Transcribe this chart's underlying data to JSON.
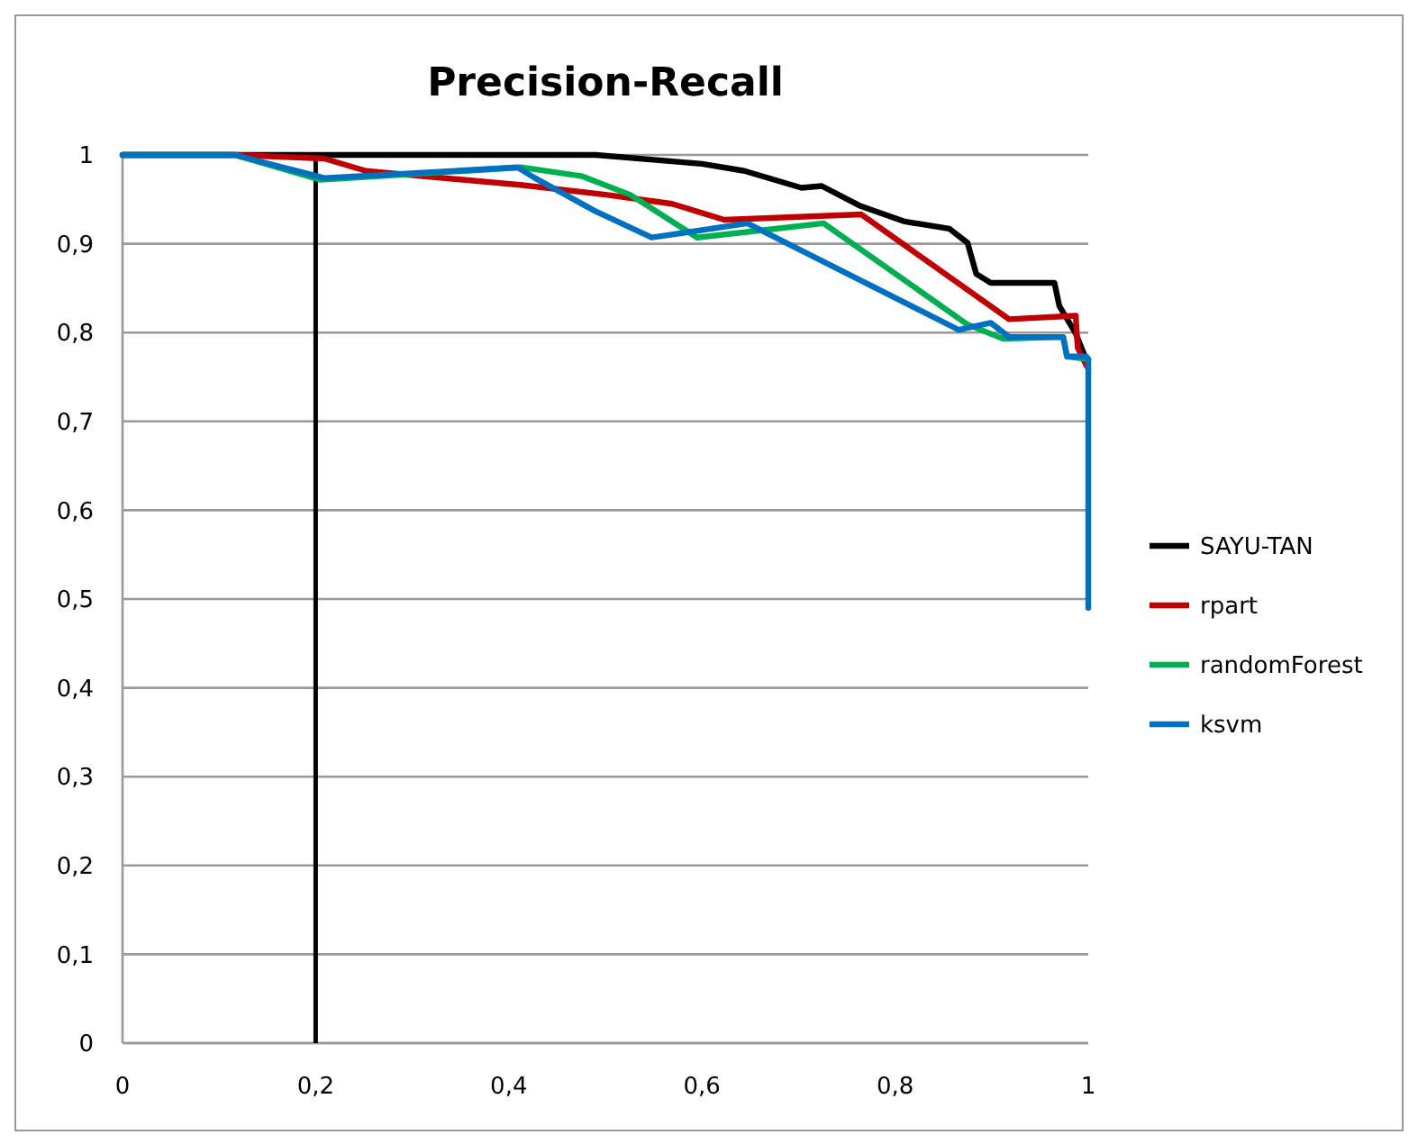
{
  "chart_data": {
    "type": "line",
    "title": "Precision-Recall",
    "xlim": [
      0,
      1
    ],
    "xticks": [
      0,
      {
        "value": 0.2,
        "label": "0,2"
      },
      {
        "value": 0.4,
        "label": "0,4"
      },
      {
        "value": 0.6,
        "label": "0,6"
      },
      {
        "value": 0.8,
        "label": "0,8"
      },
      1
    ],
    "ylim": [
      0,
      1
    ],
    "yticks": [
      0,
      {
        "value": 0.1,
        "label": "0,1"
      },
      {
        "value": 0.2,
        "label": "0,2"
      },
      {
        "value": 0.3,
        "label": "0,3"
      },
      {
        "value": 0.4,
        "label": "0,4"
      },
      {
        "value": 0.5,
        "label": "0,5"
      },
      {
        "value": 0.6,
        "label": "0,6"
      },
      {
        "value": 0.7,
        "label": "0,7"
      },
      {
        "value": 0.8,
        "label": "0,8"
      },
      {
        "value": 0.9,
        "label": "0,9"
      },
      1
    ],
    "grid": "y",
    "legend": "right",
    "marker": "none",
    "line_style": "solid",
    "ref_lines": [
      {
        "axis": "x",
        "value": 0.2,
        "color": "#000000"
      }
    ],
    "series": [
      {
        "name": "SAYU-TAN",
        "color": "#000000",
        "x": [
          0,
          0.2,
          0.49,
          0.6,
          0.644,
          0.703,
          0.724,
          0.763,
          0.81,
          0.856,
          0.875,
          0.884,
          0.899,
          0.965,
          0.97,
          0.987,
          0.998,
          1
        ],
        "values": [
          1,
          1,
          1,
          0.99,
          0.982,
          0.963,
          0.965,
          0.943,
          0.925,
          0.917,
          0.901,
          0.866,
          0.856,
          0.856,
          0.83,
          0.799,
          0.769,
          0.77
        ]
      },
      {
        "name": "rpart",
        "color": "#c00000",
        "x": [
          0,
          0.116,
          0.209,
          0.252,
          0.414,
          0.502,
          0.569,
          0.623,
          0.765,
          0.918,
          0.987,
          0.989,
          0.998,
          1
        ],
        "values": [
          1,
          1,
          0.996,
          0.982,
          0.966,
          0.955,
          0.945,
          0.927,
          0.933,
          0.815,
          0.819,
          0.783,
          0.763,
          0.76
        ]
      },
      {
        "name": "randomForest",
        "color": "#00b050",
        "x": [
          0,
          0.116,
          0.205,
          0.414,
          0.476,
          0.526,
          0.595,
          0.726,
          0.875,
          0.912,
          0.974,
          0.978,
          1
        ],
        "values": [
          1,
          1,
          0.972,
          0.986,
          0.976,
          0.955,
          0.907,
          0.923,
          0.809,
          0.793,
          0.795,
          0.773,
          0.77
        ]
      },
      {
        "name": "ksvm",
        "color": "#0070c0",
        "x": [
          0,
          0.116,
          0.209,
          0.409,
          0.427,
          0.489,
          0.548,
          0.647,
          0.866,
          0.899,
          0.918,
          0.974,
          0.978,
          0.998,
          1,
          1
        ],
        "values": [
          1,
          1,
          0.974,
          0.986,
          0.974,
          0.937,
          0.907,
          0.923,
          0.803,
          0.811,
          0.795,
          0.795,
          0.773,
          0.773,
          0.77,
          0.49
        ]
      }
    ]
  }
}
